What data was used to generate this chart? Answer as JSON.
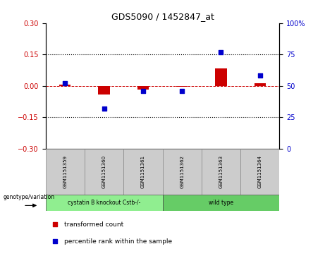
{
  "title": "GDS5090 / 1452847_at",
  "samples": [
    "GSM1151359",
    "GSM1151360",
    "GSM1151361",
    "GSM1151362",
    "GSM1151363",
    "GSM1151364"
  ],
  "red_values": [
    0.005,
    -0.042,
    -0.018,
    -0.005,
    0.082,
    0.012
  ],
  "blue_values": [
    52,
    32,
    46,
    46,
    77,
    58
  ],
  "ylim_left": [
    -0.3,
    0.3
  ],
  "ylim_right": [
    0,
    100
  ],
  "yticks_left": [
    -0.3,
    -0.15,
    0,
    0.15,
    0.3
  ],
  "yticks_right": [
    0,
    25,
    50,
    75,
    100
  ],
  "hlines": [
    0.15,
    -0.15
  ],
  "groups": [
    {
      "label": "cystatin B knockout Cstb-/-",
      "samples": [
        0,
        1,
        2
      ],
      "color": "#90EE90"
    },
    {
      "label": "wild type",
      "samples": [
        3,
        4,
        5
      ],
      "color": "#66CC66"
    }
  ],
  "genotype_label": "genotype/variation",
  "legend_red": "transformed count",
  "legend_blue": "percentile rank within the sample",
  "bar_color": "#CC0000",
  "dot_color": "#0000CC",
  "background_color": "#FFFFFF",
  "plot_bg_color": "#FFFFFF",
  "bar_width": 0.3,
  "dot_size": 18
}
